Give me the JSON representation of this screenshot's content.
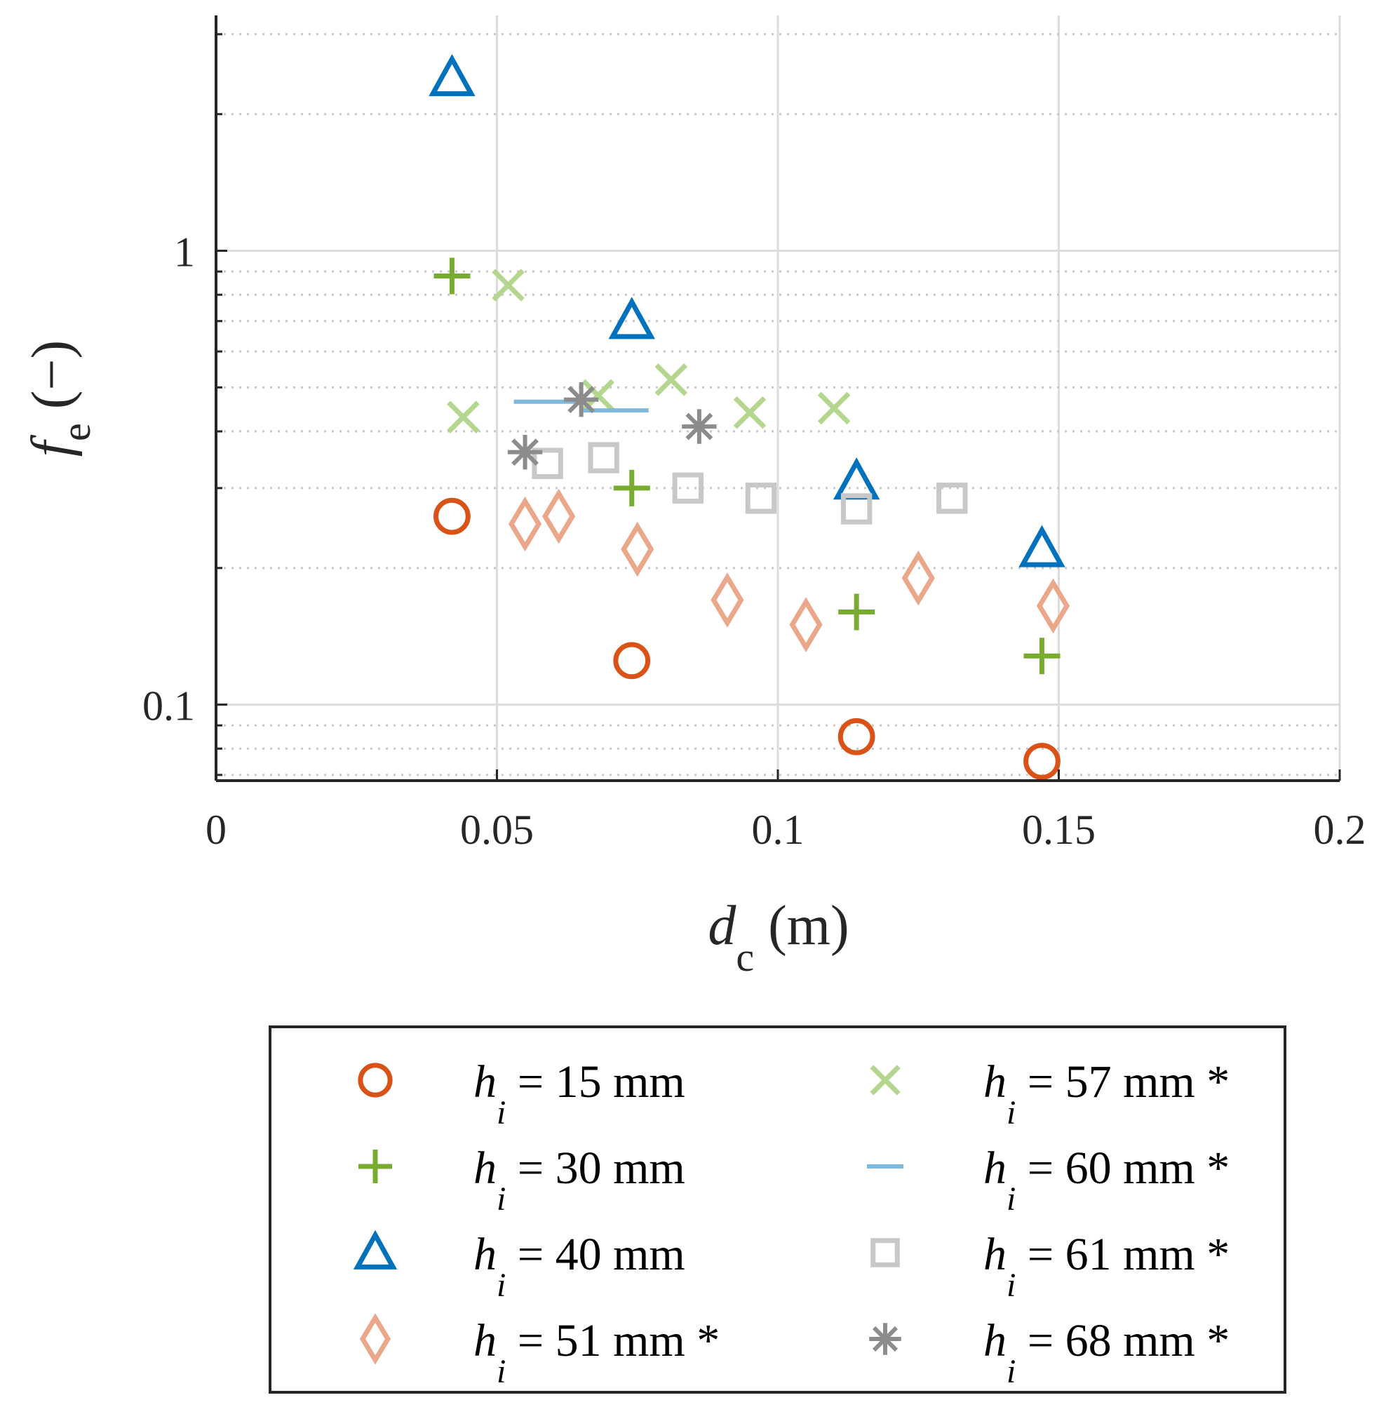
{
  "chart_data": {
    "type": "scatter",
    "title": "",
    "xlabel": {
      "var": "d",
      "sub": "c",
      "unit": " (m)"
    },
    "ylabel": {
      "var": "f",
      "sub": "e",
      "unit": " (−)"
    },
    "xlim": [
      0,
      0.2
    ],
    "ylim": [
      0.068,
      3.3
    ],
    "yscale": "log",
    "grid": true,
    "x_ticks": [
      0,
      0.05,
      0.1,
      0.15,
      0.2
    ],
    "x_tick_labels": [
      "0",
      "0.05",
      "0.1",
      "0.15",
      "0.2"
    ],
    "y_ticks": [
      0.1,
      1
    ],
    "y_tick_labels": [
      "0.1",
      "1"
    ],
    "legend_position": "bottom-outside",
    "series": [
      {
        "name": "h_i = 15 mm",
        "label": {
          "var": "h",
          "sub": "i",
          "text": " = 15 mm"
        },
        "marker": "circle",
        "color": "#d95319",
        "x": [
          0.042,
          0.074,
          0.114,
          0.147
        ],
        "y": [
          0.26,
          0.125,
          0.085,
          0.075
        ]
      },
      {
        "name": "h_i = 30 mm",
        "label": {
          "var": "h",
          "sub": "i",
          "text": " = 30 mm"
        },
        "marker": "plus",
        "color": "#77ac30",
        "x": [
          0.042,
          0.074,
          0.114,
          0.147
        ],
        "y": [
          0.88,
          0.3,
          0.16,
          0.128
        ]
      },
      {
        "name": "h_i = 40 mm",
        "label": {
          "var": "h",
          "sub": "i",
          "text": " = 40 mm"
        },
        "marker": "triangle",
        "color": "#0072bd",
        "x": [
          0.042,
          0.074,
          0.114,
          0.147
        ],
        "y": [
          2.4,
          0.7,
          0.31,
          0.22
        ]
      },
      {
        "name": "h_i = 51 mm *",
        "label": {
          "var": "h",
          "sub": "i",
          "text": " = 51 mm *"
        },
        "marker": "diamond",
        "color": "#eaa78a",
        "x": [
          0.055,
          0.061,
          0.075,
          0.091,
          0.105,
          0.125,
          0.149
        ],
        "y": [
          0.25,
          0.26,
          0.22,
          0.17,
          0.15,
          0.19,
          0.165
        ]
      },
      {
        "name": "h_i = 57 mm *",
        "label": {
          "var": "h",
          "sub": "i",
          "text": " = 57 mm *"
        },
        "marker": "x",
        "color": "#b4d68f",
        "x": [
          0.044,
          0.052,
          0.068,
          0.081,
          0.095,
          0.11
        ],
        "y": [
          0.43,
          0.84,
          0.48,
          0.52,
          0.44,
          0.45
        ]
      },
      {
        "name": "h_i = 60 mm *",
        "label": {
          "var": "h",
          "sub": "i",
          "text": " = 60 mm *"
        },
        "marker": "hline",
        "color": "#80b9de",
        "x": [
          0.059,
          0.071
        ],
        "y": [
          0.465,
          0.445
        ]
      },
      {
        "name": "h_i = 61 mm *",
        "label": {
          "var": "h",
          "sub": "i",
          "text": " = 61 mm *"
        },
        "marker": "square",
        "color": "#c8c8c8",
        "x": [
          0.059,
          0.069,
          0.084,
          0.097,
          0.114,
          0.131
        ],
        "y": [
          0.34,
          0.35,
          0.3,
          0.285,
          0.27,
          0.285
        ]
      },
      {
        "name": "h_i = 68 mm *",
        "label": {
          "var": "h",
          "sub": "i",
          "text": " = 68 mm *"
        },
        "marker": "asterisk",
        "color": "#8c8c8c",
        "x": [
          0.055,
          0.065,
          0.086
        ],
        "y": [
          0.36,
          0.47,
          0.41
        ]
      }
    ]
  }
}
